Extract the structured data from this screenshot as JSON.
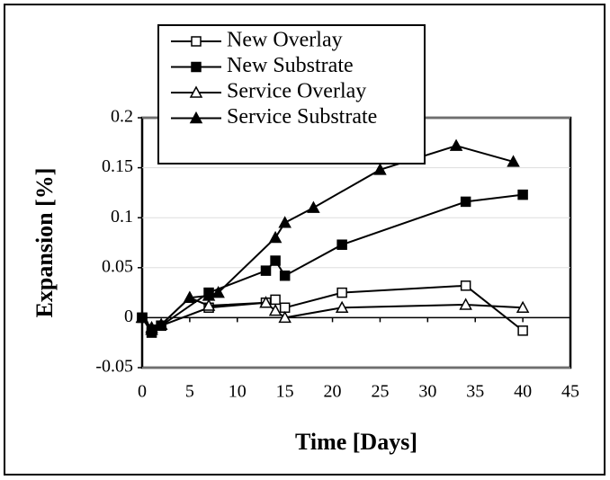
{
  "chart_data": {
    "type": "line",
    "xlabel": "Time [Days]",
    "ylabel": "Expansion [%]",
    "xlim": [
      0,
      45
    ],
    "xticks": [
      0,
      5,
      10,
      15,
      20,
      25,
      30,
      35,
      40,
      45
    ],
    "ylim": [
      -0.05,
      0.2
    ],
    "yticks": [
      -0.05,
      0,
      0.05,
      0.1,
      0.15,
      0.2
    ],
    "grid": true,
    "legend": "top-left",
    "series": [
      {
        "name": "New Overlay",
        "color": "#000000",
        "marker": "square",
        "filled": false,
        "x": [
          0,
          1,
          2,
          7,
          13,
          14,
          15,
          21,
          34,
          40
        ],
        "values": [
          0,
          -0.012,
          -0.008,
          0.01,
          0.015,
          0.018,
          0.01,
          0.025,
          0.032,
          -0.013
        ]
      },
      {
        "name": "New Substrate",
        "color": "#000000",
        "marker": "square",
        "filled": true,
        "x": [
          0,
          1,
          2,
          7,
          13,
          14,
          15,
          21,
          34,
          40
        ],
        "values": [
          0,
          -0.015,
          -0.008,
          0.025,
          0.047,
          0.057,
          0.042,
          0.073,
          0.116,
          0.123
        ]
      },
      {
        "name": "Service Overlay",
        "color": "#000000",
        "marker": "triangle",
        "filled": false,
        "x": [
          0,
          1,
          2,
          5,
          7,
          13,
          14,
          15,
          21,
          34,
          40
        ],
        "values": [
          0,
          -0.01,
          -0.007,
          0.02,
          0.012,
          0.015,
          0.007,
          0,
          0.01,
          0.013,
          0.01
        ]
      },
      {
        "name": "Service Substrate",
        "color": "#000000",
        "marker": "triangle",
        "filled": true,
        "x": [
          0,
          1,
          2,
          5,
          7,
          8,
          14,
          15,
          18,
          25,
          33,
          39
        ],
        "values": [
          0,
          -0.012,
          -0.007,
          0.02,
          0.022,
          0.025,
          0.08,
          0.095,
          0.11,
          0.148,
          0.172,
          0.156
        ]
      }
    ]
  }
}
